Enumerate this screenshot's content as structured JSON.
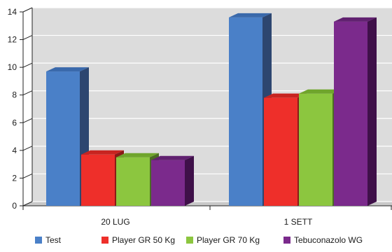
{
  "chart_data": {
    "type": "bar",
    "categories": [
      "20 LUG",
      "1 SETT"
    ],
    "series": [
      {
        "name": "Test",
        "values": [
          9.7,
          13.6
        ]
      },
      {
        "name": "Player GR 50 Kg",
        "values": [
          3.7,
          7.8
        ]
      },
      {
        "name": "Player GR 70 Kg",
        "values": [
          3.5,
          8.1
        ]
      },
      {
        "name": "Tebuconazolo WG",
        "values": [
          3.3,
          13.3
        ]
      }
    ],
    "ylim": [
      0,
      14
    ],
    "yticks": [
      "0",
      "2",
      "4",
      "6",
      "8",
      "10",
      "12",
      "14"
    ],
    "grid": true,
    "legend_position": "bottom",
    "colors": {
      "series_front": [
        "#4a80c8",
        "#ee2f2a",
        "#8cc63f",
        "#7b2a8c"
      ],
      "series_top": [
        "#3a69ab",
        "#c82420",
        "#6fa52c",
        "#612170"
      ],
      "series_side": [
        "#2d4670",
        "#8a1a17",
        "#4b6b23",
        "#3f1049"
      ],
      "plot_back": "#dcdcdc",
      "plot_floor": "#c8c8c8",
      "gridline": "#ffffff"
    }
  }
}
